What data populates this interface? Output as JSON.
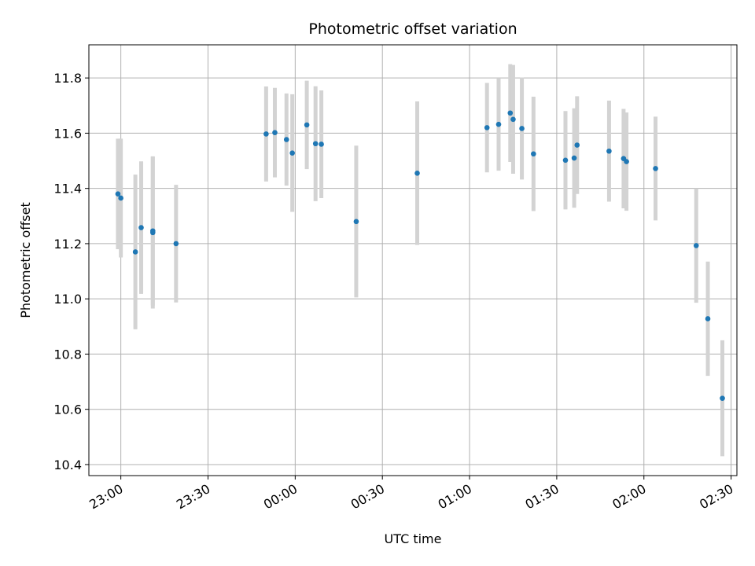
{
  "chart_data": {
    "type": "scatter",
    "title": "Photometric offset variation",
    "xlabel": "UTC time",
    "ylabel": "Photometric offset",
    "x_ticks": [
      "23:00",
      "23:30",
      "00:00",
      "00:30",
      "01:00",
      "01:30",
      "02:00",
      "02:30"
    ],
    "y_ticks": [
      "10.4",
      "10.6",
      "10.8",
      "11.0",
      "11.2",
      "11.4",
      "11.6",
      "11.8"
    ],
    "xlim": [
      "22:49",
      "02:32"
    ],
    "ylim": [
      10.36,
      11.92
    ],
    "grid": true,
    "marker_color": "#1f77b4",
    "errorbar_color": "#d3d3d3",
    "points": [
      {
        "x": "22:59",
        "y": 11.38,
        "err": 0.2
      },
      {
        "x": "23:00",
        "y": 11.365,
        "err": 0.215
      },
      {
        "x": "23:05",
        "y": 11.17,
        "err": 0.28
      },
      {
        "x": "23:07",
        "y": 11.258,
        "err": 0.24
      },
      {
        "x": "23:11",
        "y": 11.24,
        "err": 0.275
      },
      {
        "x": "23:11",
        "y": 11.246,
        "err": 0.27
      },
      {
        "x": "23:19",
        "y": 11.2,
        "err": 0.213
      },
      {
        "x": "23:50",
        "y": 11.597,
        "err": 0.172
      },
      {
        "x": "23:53",
        "y": 11.602,
        "err": 0.162
      },
      {
        "x": "23:57",
        "y": 11.577,
        "err": 0.167
      },
      {
        "x": "23:59",
        "y": 11.528,
        "err": 0.213
      },
      {
        "x": "00:04",
        "y": 11.63,
        "err": 0.16
      },
      {
        "x": "00:07",
        "y": 11.562,
        "err": 0.208
      },
      {
        "x": "00:09",
        "y": 11.56,
        "err": 0.195
      },
      {
        "x": "00:21",
        "y": 11.28,
        "err": 0.275
      },
      {
        "x": "00:42",
        "y": 11.455,
        "err": 0.26
      },
      {
        "x": "01:06",
        "y": 11.62,
        "err": 0.162
      },
      {
        "x": "01:10",
        "y": 11.632,
        "err": 0.168
      },
      {
        "x": "01:14",
        "y": 11.673,
        "err": 0.177
      },
      {
        "x": "01:15",
        "y": 11.65,
        "err": 0.197
      },
      {
        "x": "01:18",
        "y": 11.617,
        "err": 0.185
      },
      {
        "x": "01:22",
        "y": 11.525,
        "err": 0.207
      },
      {
        "x": "01:33",
        "y": 11.502,
        "err": 0.178
      },
      {
        "x": "01:36",
        "y": 11.51,
        "err": 0.18
      },
      {
        "x": "01:37",
        "y": 11.557,
        "err": 0.177
      },
      {
        "x": "01:48",
        "y": 11.535,
        "err": 0.183
      },
      {
        "x": "01:53",
        "y": 11.508,
        "err": 0.18
      },
      {
        "x": "01:54",
        "y": 11.497,
        "err": 0.178
      },
      {
        "x": "02:04",
        "y": 11.472,
        "err": 0.188
      },
      {
        "x": "02:18",
        "y": 11.193,
        "err": 0.207
      },
      {
        "x": "02:22",
        "y": 10.928,
        "err": 0.207
      },
      {
        "x": "02:27",
        "y": 10.64,
        "err": 0.21
      }
    ]
  }
}
